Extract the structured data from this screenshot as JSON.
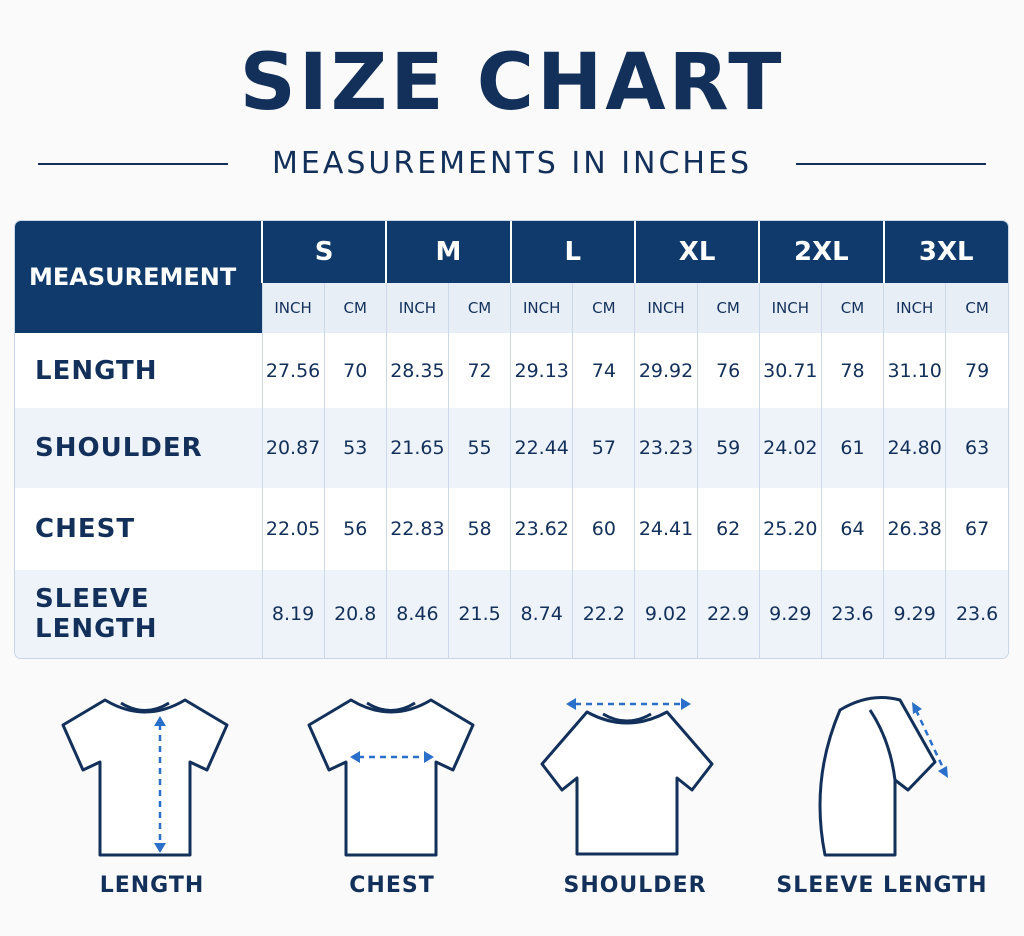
{
  "header": {
    "title": "SIZE CHART",
    "subtitle": "MEASUREMENTS IN INCHES"
  },
  "table": {
    "corner": "MEASUREMENT",
    "sizes": [
      "S",
      "M",
      "L",
      "XL",
      "2XL",
      "3XL"
    ],
    "units": [
      "INCH",
      "CM"
    ],
    "rows": [
      {
        "label": "LENGTH",
        "values": [
          "27.56",
          "70",
          "28.35",
          "72",
          "29.13",
          "74",
          "29.92",
          "76",
          "30.71",
          "78",
          "31.10",
          "79"
        ]
      },
      {
        "label": "SHOULDER",
        "values": [
          "20.87",
          "53",
          "21.65",
          "55",
          "22.44",
          "57",
          "23.23",
          "59",
          "24.02",
          "61",
          "24.80",
          "63"
        ]
      },
      {
        "label": "CHEST",
        "values": [
          "22.05",
          "56",
          "22.83",
          "58",
          "23.62",
          "60",
          "24.41",
          "62",
          "25.20",
          "64",
          "26.38",
          "67"
        ]
      },
      {
        "label": "SLEEVE LENGTH",
        "values": [
          "8.19",
          "20.8",
          "8.46",
          "21.5",
          "8.74",
          "22.2",
          "9.02",
          "22.9",
          "9.29",
          "23.6",
          "9.29",
          "23.6"
        ]
      }
    ]
  },
  "diagrams": [
    "LENGTH",
    "CHEST",
    "SHOULDER",
    "SLEEVE LENGTH"
  ]
}
